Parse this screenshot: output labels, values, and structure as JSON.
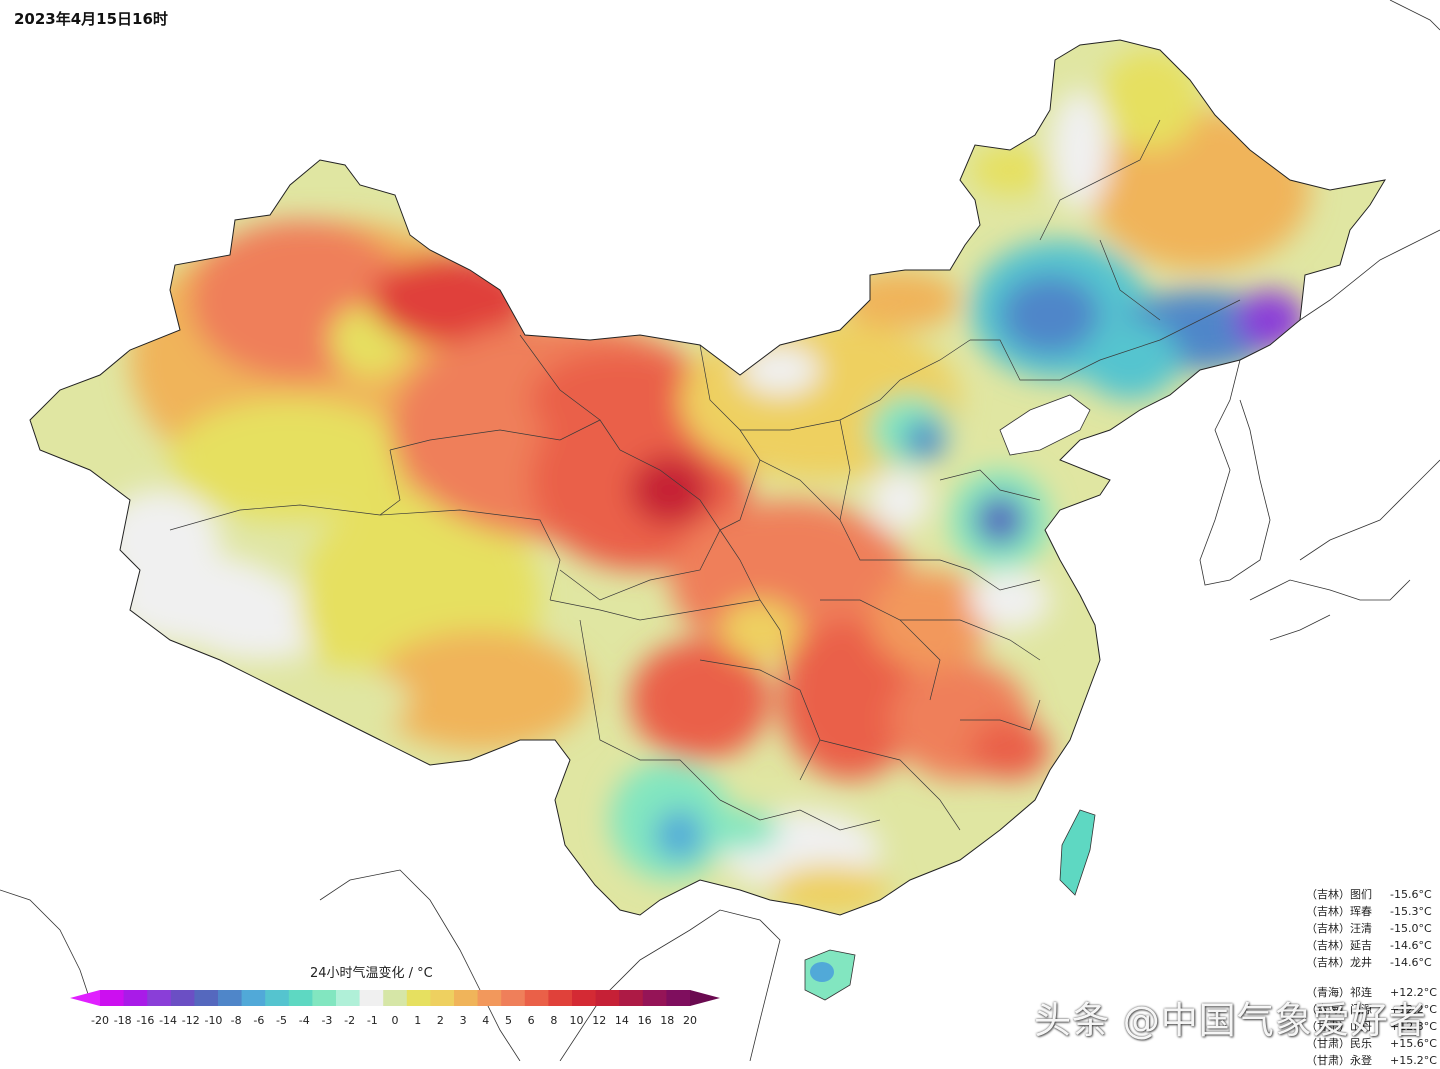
{
  "header": {
    "timestamp": "2023年4月15日16时"
  },
  "legend": {
    "title": "24小时气温变化 / °C",
    "ticks": [
      "-20",
      "-18",
      "-16",
      "-14",
      "-12",
      "-10",
      "-8",
      "-6",
      "-5",
      "-4",
      "-3",
      "-2",
      "-1",
      "0",
      "1",
      "2",
      "3",
      "4",
      "5",
      "6",
      "8",
      "10",
      "12",
      "14",
      "16",
      "18",
      "20"
    ],
    "colors": [
      "#cc0ff0",
      "#a91be8",
      "#8a3ed8",
      "#6b4fc4",
      "#5568be",
      "#4f86c9",
      "#51a9d8",
      "#55c4cf",
      "#5ed8c2",
      "#82e6c0",
      "#b0f0d8",
      "#f0f0f0",
      "#d6e6a7",
      "#e6e060",
      "#eed060",
      "#f0b45a",
      "#f2985c",
      "#ef7f5a",
      "#ea6048",
      "#e0413a",
      "#d42a34",
      "#c62036",
      "#ad1a45",
      "#951457",
      "#7f0e5e"
    ],
    "min_color": "#e020ff",
    "max_color": "#6a0a50"
  },
  "stations": {
    "coldest": [
      {
        "province": "（吉林）",
        "name": "图们",
        "value": "-15.6°C"
      },
      {
        "province": "（吉林）",
        "name": "珲春",
        "value": "-15.3°C"
      },
      {
        "province": "（吉林）",
        "name": "汪清",
        "value": "-15.0°C"
      },
      {
        "province": "（吉林）",
        "name": "延吉",
        "value": "-14.6°C"
      },
      {
        "province": "（吉林）",
        "name": "龙井",
        "value": "-14.6°C"
      }
    ],
    "warmest": [
      {
        "province": "（青海）",
        "name": "祁连",
        "value": "+12.2°C"
      },
      {
        "province": "（青海）",
        "name": "门源",
        "value": "+12.2°C"
      },
      {
        "province": "（甘肃）",
        "name": "山丹",
        "value": "+12.3°C"
      },
      {
        "province": "（甘肃）",
        "name": "民乐",
        "value": "+15.6°C"
      },
      {
        "province": "（甘肃）",
        "name": "永登",
        "value": "+15.2°C"
      }
    ]
  },
  "watermark": "头条 @中国气象爱好者"
}
